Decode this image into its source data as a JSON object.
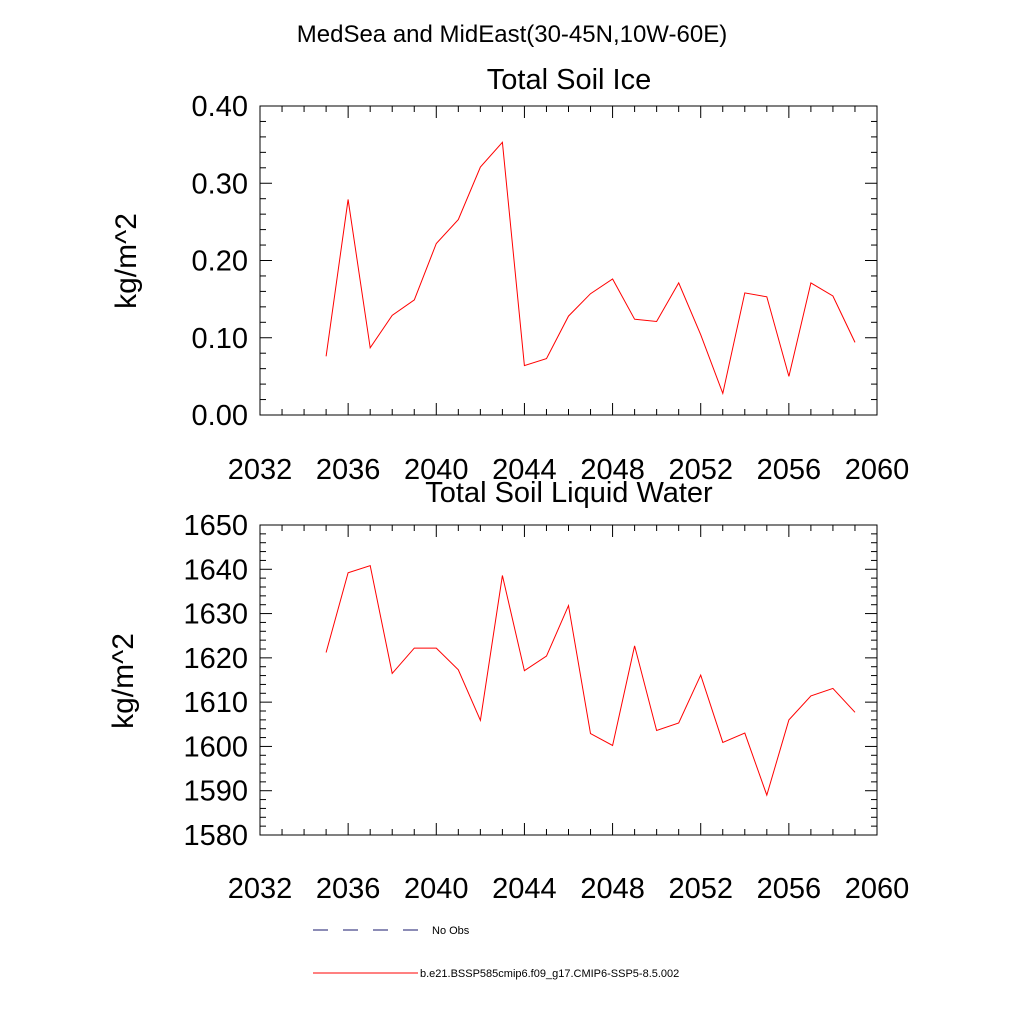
{
  "figure_title": "MedSea and MidEast(30-45N,10W-60E)",
  "legend": {
    "items": [
      {
        "label": "No Obs",
        "color": "#1a1a6e",
        "dash": true
      },
      {
        "label": "b.e21.BSSP585cmip6.f09_g17.CMIP6-SSP5-8.5.002",
        "color": "#ff0000",
        "dash": false
      }
    ]
  },
  "chart_data": [
    {
      "type": "line",
      "title": "Total Soil Ice",
      "xlabel": "",
      "ylabel": "kg/m^2",
      "xlim": [
        2032,
        2060
      ],
      "ylim": [
        0.0,
        0.4
      ],
      "x_ticks": [
        2032,
        2036,
        2040,
        2044,
        2048,
        2052,
        2056,
        2060
      ],
      "y_ticks": [
        "0.00",
        "0.10",
        "0.20",
        "0.30",
        "0.40"
      ],
      "y_tick_values": [
        0.0,
        0.1,
        0.2,
        0.3,
        0.4
      ],
      "series": [
        {
          "color": "#ff0000",
          "x": [
            2035,
            2036,
            2037,
            2038,
            2039,
            2040,
            2041,
            2042,
            2043,
            2044,
            2045,
            2046,
            2047,
            2048,
            2049,
            2050,
            2051,
            2052,
            2053,
            2054,
            2055,
            2056,
            2057,
            2058,
            2059
          ],
          "values": [
            0.076,
            0.279,
            0.087,
            0.129,
            0.149,
            0.222,
            0.253,
            0.321,
            0.353,
            0.064,
            0.073,
            0.128,
            0.157,
            0.176,
            0.124,
            0.121,
            0.171,
            0.104,
            0.028,
            0.158,
            0.153,
            0.05,
            0.171,
            0.154,
            0.094
          ]
        }
      ]
    },
    {
      "type": "line",
      "title": "Total Soil Liquid Water",
      "xlabel": "",
      "ylabel": "kg/m^2",
      "xlim": [
        2032,
        2060
      ],
      "ylim": [
        1580,
        1650
      ],
      "x_ticks": [
        2032,
        2036,
        2040,
        2044,
        2048,
        2052,
        2056,
        2060
      ],
      "y_ticks": [
        "1580",
        "1590",
        "1600",
        "1610",
        "1620",
        "1630",
        "1640",
        "1650"
      ],
      "y_tick_values": [
        1580,
        1590,
        1600,
        1610,
        1620,
        1630,
        1640,
        1650
      ],
      "series": [
        {
          "color": "#ff0000",
          "x": [
            2035,
            2036,
            2037,
            2038,
            2039,
            2040,
            2041,
            2042,
            2043,
            2044,
            2045,
            2046,
            2047,
            2048,
            2049,
            2050,
            2051,
            2052,
            2053,
            2054,
            2055,
            2056,
            2057,
            2058,
            2059
          ],
          "values": [
            1621.2,
            1639.2,
            1640.8,
            1616.5,
            1622.2,
            1622.2,
            1617.3,
            1605.9,
            1638.6,
            1617.1,
            1620.4,
            1631.8,
            1602.9,
            1600.2,
            1622.7,
            1603.6,
            1605.3,
            1616.1,
            1600.9,
            1603.0,
            1589.0,
            1606.0,
            1611.4,
            1613.1,
            1607.7
          ]
        }
      ]
    }
  ]
}
